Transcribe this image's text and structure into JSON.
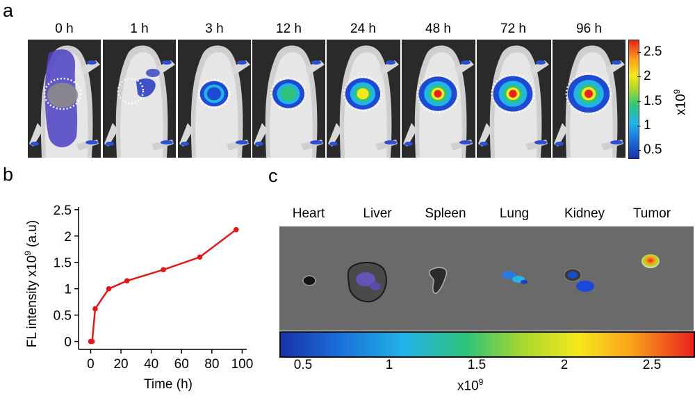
{
  "panel_a": {
    "letter": "a",
    "timepoints": [
      "0 h",
      "1 h",
      "3 h",
      "12 h",
      "24 h",
      "48 h",
      "72 h",
      "96 h"
    ],
    "signal_levels": [
      0.0,
      0.15,
      0.35,
      0.5,
      0.62,
      0.75,
      0.8,
      0.9
    ],
    "colorbar": {
      "ticks": [
        "2.5",
        "2",
        "1.5",
        "1",
        "0.5"
      ],
      "unit_base": "x10",
      "unit_exp": "9"
    }
  },
  "chart_data": {
    "type": "line",
    "panel_letter": "b",
    "x": [
      0,
      1,
      3,
      12,
      24,
      48,
      72,
      96
    ],
    "series": [
      {
        "name": "FL intensity",
        "color": "#e0191b",
        "values": [
          0,
          0,
          0.62,
          1.0,
          1.15,
          1.36,
          1.6,
          2.12
        ]
      }
    ],
    "xlabel": "Time (h)",
    "ylabel_pre": "FL intensity x10",
    "ylabel_exp": "9",
    "ylabel_post": " (a.u)",
    "xlim": [
      -8,
      103
    ],
    "ylim": [
      -0.15,
      2.55
    ],
    "xticks": [
      0,
      20,
      40,
      60,
      80,
      100
    ],
    "yticks": [
      0,
      0.5,
      1,
      1.5,
      2,
      2.5
    ],
    "xtick_labels": [
      "0",
      "20",
      "40",
      "60",
      "80",
      "100"
    ],
    "ytick_labels": [
      "0",
      "0.5",
      "1",
      "1.5",
      "2",
      "2.5"
    ]
  },
  "panel_c": {
    "letter": "c",
    "organs": [
      "Heart",
      "Liver",
      "Spleen",
      "Lung",
      "Kidney",
      "Tumor"
    ],
    "colorbar": {
      "ticks": [
        "0.5",
        "1",
        "1.5",
        "2",
        "2.5"
      ],
      "unit_base": "x10",
      "unit_exp": "9"
    }
  }
}
